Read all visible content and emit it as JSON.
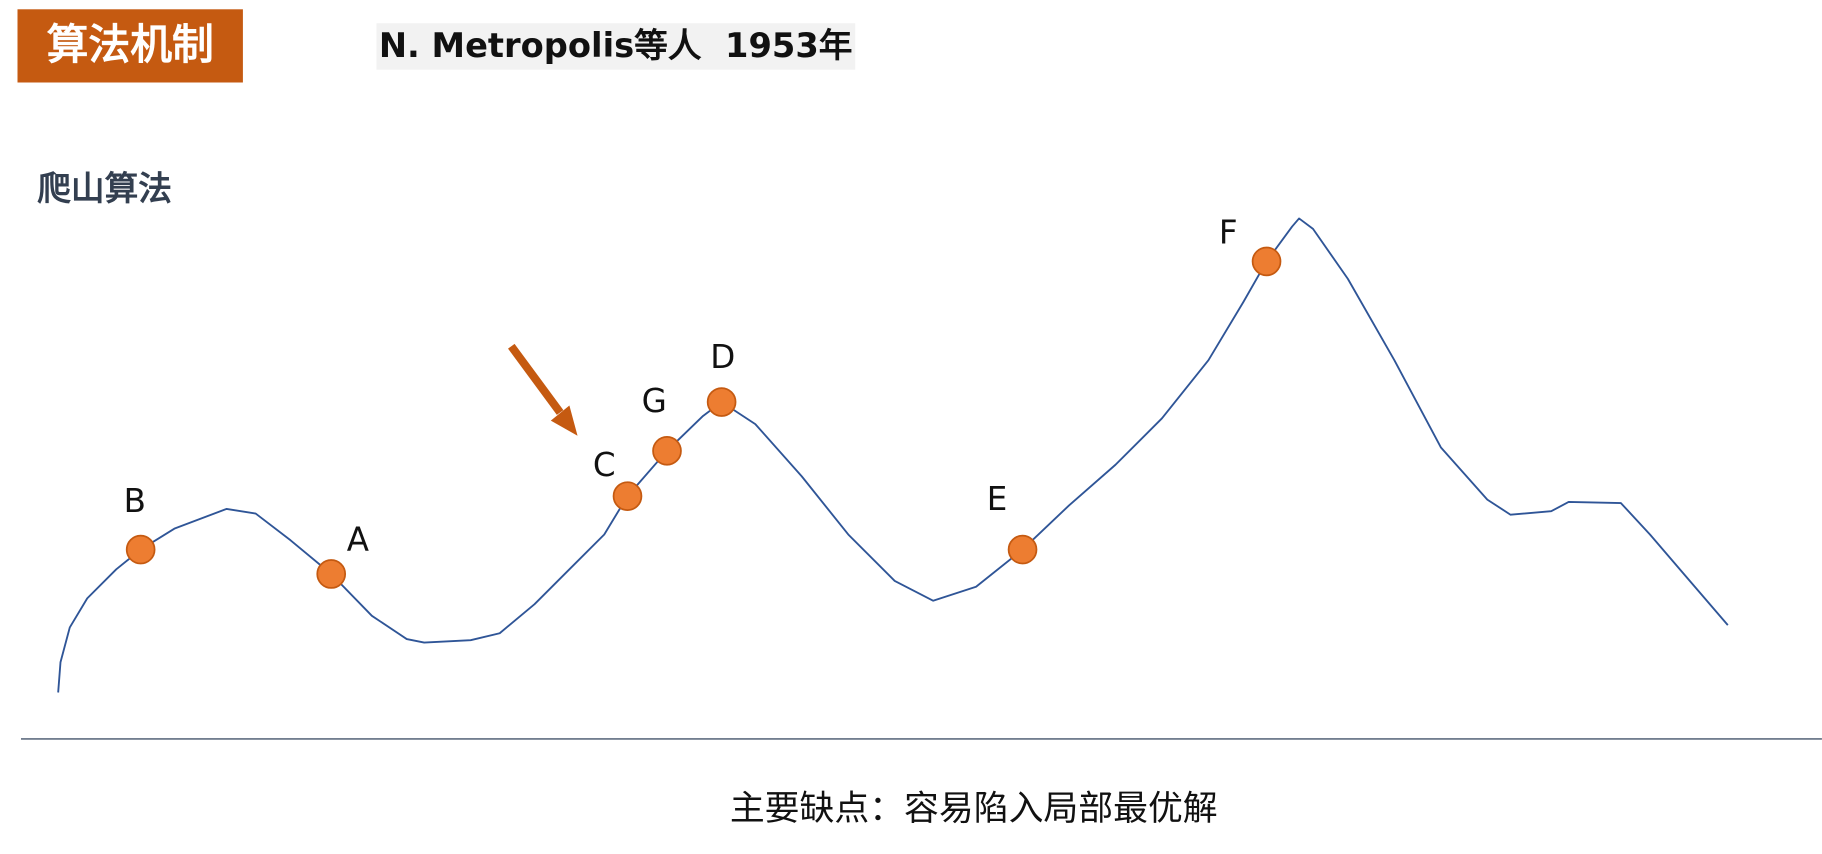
{
  "header": {
    "title": "算法机制",
    "subtitle": "N. Metropolis等人  1953年"
  },
  "section": {
    "title": "爬山算法"
  },
  "points": [
    {
      "label": "B"
    },
    {
      "label": "A"
    },
    {
      "label": "C"
    },
    {
      "label": "G"
    },
    {
      "label": "D"
    },
    {
      "label": "E"
    },
    {
      "label": "F"
    }
  ],
  "footer": {
    "text": "主要缺点：容易陷入局部最优解"
  }
}
